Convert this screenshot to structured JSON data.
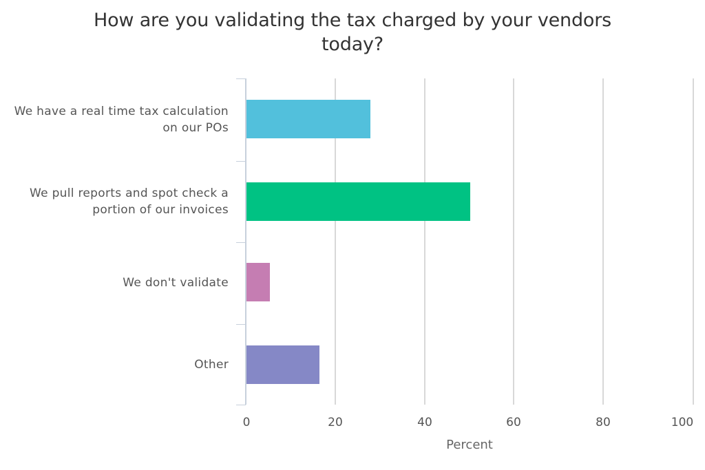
{
  "chart_data": {
    "type": "bar",
    "orientation": "horizontal",
    "title": "How are you validating the tax charged by your vendors today?",
    "title_lines": [
      "How are you validating the tax charged by your vendors",
      "today?"
    ],
    "categories": [
      "We have a real time tax calculation on our POs",
      "We pull reports and spot check a portion of our invoices",
      "We don't validate",
      "Other"
    ],
    "category_lines": [
      [
        "We have a real time tax calculation",
        "on our POs"
      ],
      [
        "We pull reports and spot check a",
        "portion of our invoices"
      ],
      [
        "We don't validate"
      ],
      [
        "Other"
      ]
    ],
    "values": [
      27.7,
      50.0,
      5.3,
      16.4
    ],
    "colors": [
      "#52c0dc",
      "#00c283",
      "#c57db2",
      "#8588c6"
    ],
    "xlabel": "Percent",
    "ylabel": "",
    "xlim": [
      0,
      100
    ],
    "xticks": [
      "0",
      "20",
      "40",
      "60",
      "80",
      "100"
    ],
    "grid": true,
    "legend": null
  }
}
